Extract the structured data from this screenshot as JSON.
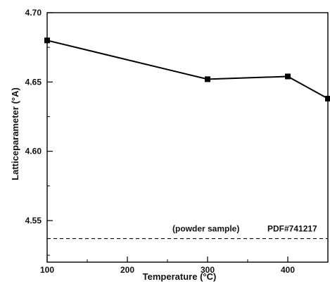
{
  "chart_data": {
    "type": "line",
    "title": "",
    "xlabel": "Temperature (°C)",
    "ylabel": "Latticeparameter (°A)",
    "xlim": [
      100,
      450
    ],
    "ylim": [
      4.52,
      4.7
    ],
    "x_ticks": [
      "100",
      "200",
      "300",
      "400"
    ],
    "y_ticks": [
      "4.55",
      "4.60",
      "4.65",
      "4.70"
    ],
    "grid": false,
    "series": [
      {
        "x": [
          100,
          300,
          400,
          450
        ],
        "values": [
          4.68,
          4.652,
          4.654,
          4.638
        ],
        "color": "#000000",
        "marker": "square"
      }
    ],
    "reference_line": {
      "y": 4.537,
      "style": "dashed",
      "annotations": [
        "(powder sample)",
        "PDF#741217"
      ]
    }
  }
}
